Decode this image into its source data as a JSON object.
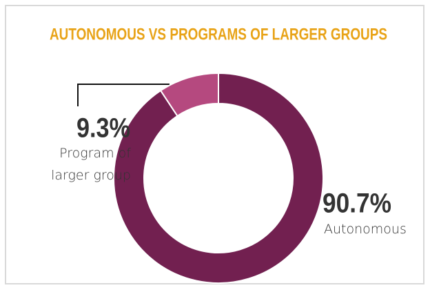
{
  "chart_data": {
    "type": "pie",
    "donut": true,
    "title": "AUTONOMOUS VS PROGRAMS OF LARGER GROUPS",
    "categories": [
      "Autonomous",
      "Program of larger group"
    ],
    "values": [
      90.7,
      9.3
    ],
    "value_labels": [
      "90.7%",
      "9.3%"
    ],
    "colors": [
      "#722050",
      "#b5497f"
    ]
  }
}
